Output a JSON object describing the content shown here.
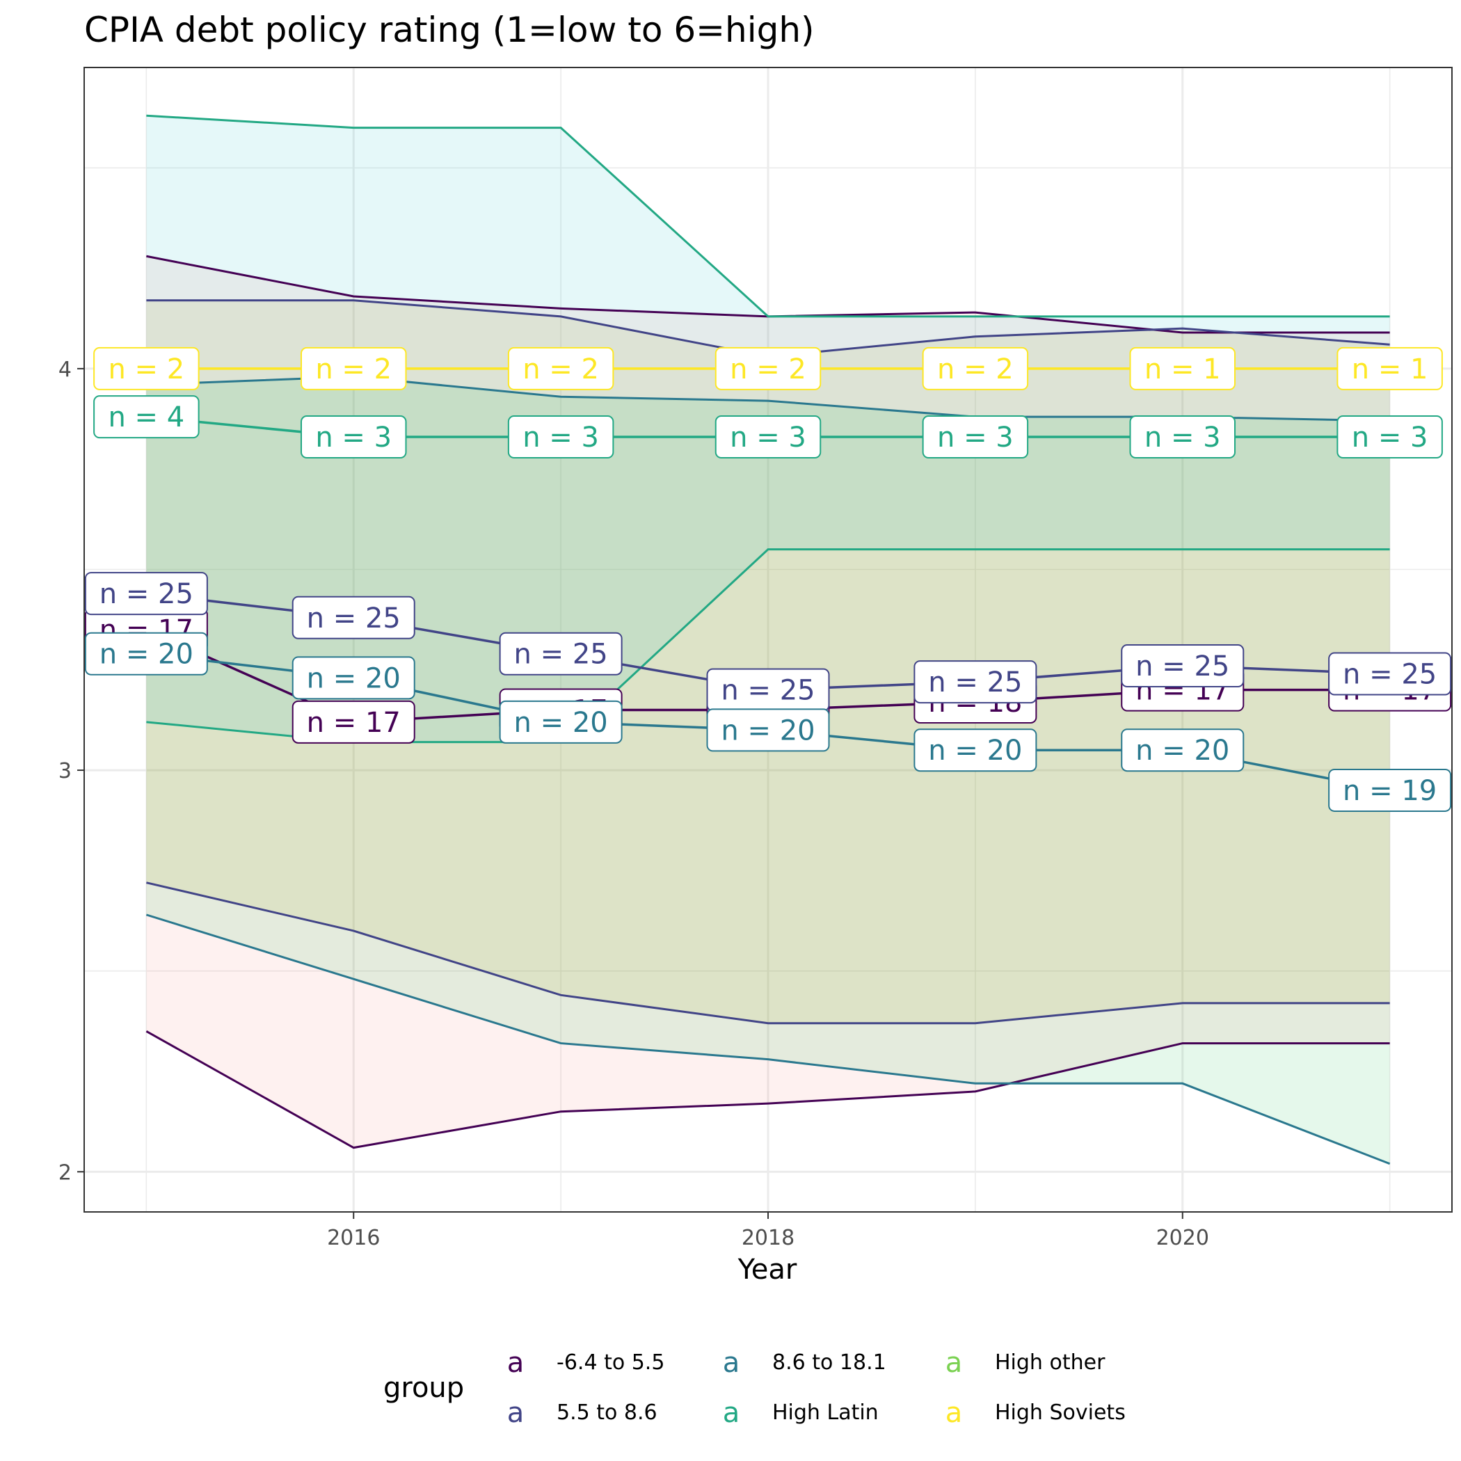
{
  "chart_data": {
    "type": "line",
    "title": "CPIA debt policy rating (1=low to 6=high)",
    "xlabel": "Year",
    "ylabel": "",
    "x": [
      2015,
      2016,
      2017,
      2018,
      2019,
      2020,
      2021
    ],
    "xlim": [
      2014.7,
      2021.3
    ],
    "ylim": [
      1.9,
      4.75
    ],
    "xticks": [
      2016,
      2018,
      2020
    ],
    "yticks": [
      2,
      3,
      4
    ],
    "grid": true,
    "legend": {
      "title": "group",
      "position": "bottom",
      "key_glyph": "a",
      "items": [
        {
          "name": "-6.4 to 5.5",
          "color": "#440154"
        },
        {
          "name": "5.5 to 8.6",
          "color": "#414487"
        },
        {
          "name": "8.6 to 18.1",
          "color": "#2A788E"
        },
        {
          "name": "High Latin",
          "color": "#22A884"
        },
        {
          "name": "High other",
          "color": "#7AD151"
        },
        {
          "name": "High Soviets",
          "color": "#FDE725"
        }
      ]
    },
    "series": [
      {
        "name": "-6.4 to 5.5",
        "color": "#440154",
        "fill": "#F8766D",
        "mean": [
          3.35,
          3.12,
          3.15,
          3.15,
          3.17,
          3.2,
          3.2
        ],
        "upper": [
          4.28,
          4.18,
          4.15,
          4.13,
          4.14,
          4.09,
          4.09
        ],
        "lower": [
          2.35,
          2.06,
          2.15,
          2.17,
          2.2,
          2.32,
          2.32
        ],
        "n": [
          "n = 17",
          "n = 17",
          "n = 17",
          "n = 17",
          "n = 18",
          "n = 17",
          "n = 17"
        ]
      },
      {
        "name": "5.5 to 8.6",
        "color": "#414487",
        "fill": "#B79F00",
        "mean": [
          3.44,
          3.38,
          3.29,
          3.2,
          3.22,
          3.26,
          3.24
        ],
        "upper": [
          4.17,
          4.17,
          4.13,
          4.03,
          4.08,
          4.1,
          4.06
        ],
        "lower": [
          2.72,
          2.6,
          2.44,
          2.37,
          2.37,
          2.42,
          2.42
        ],
        "n": [
          "n = 25",
          "n = 25",
          "n = 25",
          "n = 25",
          "n = 25",
          "n = 25",
          "n = 25"
        ]
      },
      {
        "name": "8.6 to 18.1",
        "color": "#2A788E",
        "fill": "#00BA38",
        "mean": [
          3.29,
          3.23,
          3.12,
          3.1,
          3.05,
          3.05,
          2.95
        ],
        "upper": [
          3.96,
          3.98,
          3.93,
          3.92,
          3.88,
          3.88,
          3.87
        ],
        "lower": [
          2.64,
          2.48,
          2.32,
          2.28,
          2.22,
          2.22,
          2.02
        ],
        "n": [
          "n = 20",
          "n = 20",
          "n = 20",
          "n = 20",
          "n = 20",
          "n = 20",
          "n = 19"
        ]
      },
      {
        "name": "High Latin",
        "color": "#22A884",
        "fill": "#00BFC4",
        "mean": [
          3.88,
          3.83,
          3.83,
          3.83,
          3.83,
          3.83,
          3.83
        ],
        "upper": [
          4.63,
          4.6,
          4.6,
          4.13,
          4.13,
          4.13,
          4.13
        ],
        "lower": [
          3.12,
          3.07,
          3.07,
          3.55,
          3.55,
          3.55,
          3.55
        ],
        "n": [
          "n = 4",
          "n = 3",
          "n = 3",
          "n = 3",
          "n = 3",
          "n = 3",
          "n = 3"
        ]
      },
      {
        "name": "High Soviets",
        "color": "#FDE725",
        "fill": "#F564E3",
        "mean": [
          4.0,
          4.0,
          4.0,
          4.0,
          4.0,
          4.0,
          4.0
        ],
        "upper": [
          4.0,
          4.0,
          4.0,
          4.0,
          4.0,
          4.0,
          4.0
        ],
        "lower": [
          4.0,
          4.0,
          4.0,
          4.0,
          4.0,
          4.0,
          4.0
        ],
        "n": [
          "n = 2",
          "n = 2",
          "n = 2",
          "n = 2",
          "n = 2",
          "n = 1",
          "n = 1"
        ]
      }
    ]
  }
}
